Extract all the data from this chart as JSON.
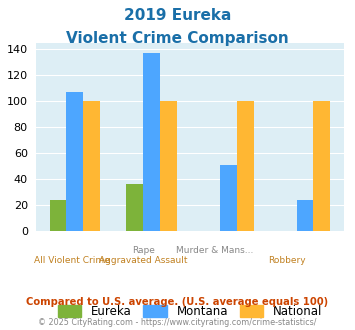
{
  "title_line1": "2019 Eureka",
  "title_line2": "Violent Crime Comparison",
  "cat_top_labels": [
    "",
    "Rape",
    "Murder & Mans...",
    ""
  ],
  "cat_bot_labels": [
    "All Violent Crime",
    "Aggravated Assault",
    "",
    "Robbery"
  ],
  "eureka": [
    24,
    36,
    0,
    0
  ],
  "montana": [
    107,
    137,
    51,
    24
  ],
  "national": [
    100,
    100,
    100,
    100
  ],
  "eureka_color": "#7db33a",
  "montana_color": "#4da6ff",
  "national_color": "#ffb733",
  "bg_color": "#ddeef5",
  "ylim": [
    0,
    145
  ],
  "yticks": [
    0,
    20,
    40,
    60,
    80,
    100,
    120,
    140
  ],
  "title_color": "#1a6fa8",
  "xlabel_top_color": "#888888",
  "xlabel_bot_color": "#c08020",
  "footer1": "Compared to U.S. average. (U.S. average equals 100)",
  "footer2": "© 2025 CityRating.com - https://www.cityrating.com/crime-statistics/",
  "footer1_color": "#cc4400",
  "footer2_color": "#888888"
}
